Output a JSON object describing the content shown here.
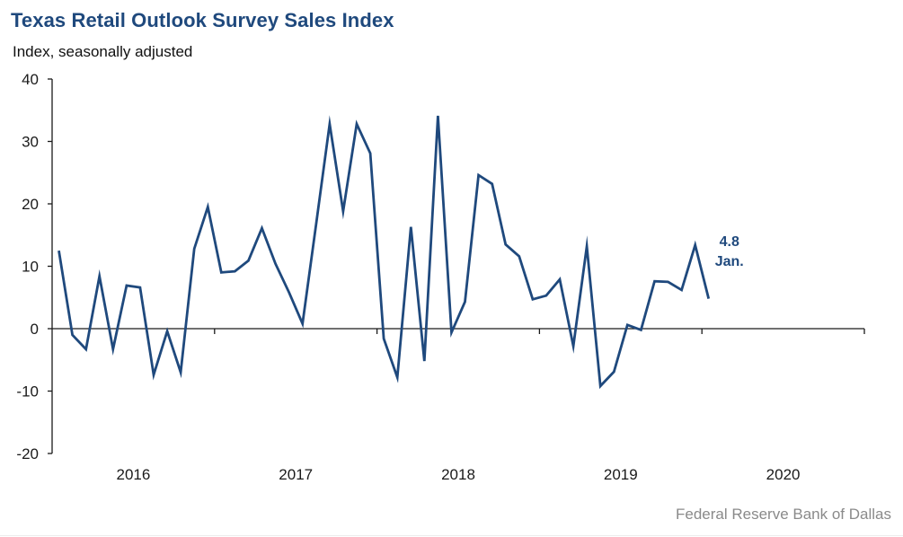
{
  "header": {
    "title": "Texas Retail Outlook Survey Sales Index",
    "subtitle": "Index, seasonally adjusted"
  },
  "footer": {
    "source": "Federal Reserve Bank of Dallas"
  },
  "colors": {
    "series": "#1f497d",
    "title": "#1f497d",
    "axis": "#1a1a1a",
    "source": "#8a8a8a"
  },
  "chart_data": {
    "type": "line",
    "title": "Texas Retail Outlook Survey Sales Index",
    "subtitle": "Index, seasonally adjusted",
    "xlabel": "",
    "ylabel": "Index, seasonally adjusted",
    "ylim": [
      -20,
      40
    ],
    "yticks": [
      40,
      30,
      20,
      10,
      0,
      -10,
      -20
    ],
    "ytick_labels": [
      "40",
      "30",
      "20",
      "10",
      "0",
      "-10",
      "-20"
    ],
    "xlim_months": [
      "2016-01",
      "2020-12"
    ],
    "xtick_labels": [
      "2016",
      "2017",
      "2018",
      "2019",
      "2020"
    ],
    "grid": false,
    "legend": "none",
    "series": [
      {
        "name": "Sales Index",
        "start": "2016-01",
        "frequency": "monthly",
        "values": [
          12.5,
          -1.0,
          -3.3,
          8.4,
          -3.3,
          6.9,
          6.6,
          -7.4,
          -0.4,
          -7.0,
          12.8,
          19.5,
          9.0,
          9.2,
          10.9,
          16.1,
          10.4,
          5.8,
          0.8,
          16.7,
          32.8,
          18.8,
          32.8,
          28.1,
          -1.6,
          -7.8,
          16.3,
          -5.2,
          34.1,
          -0.6,
          4.3,
          24.6,
          23.2,
          13.5,
          11.6,
          4.7,
          5.3,
          7.9,
          -2.8,
          13.2,
          -9.2,
          -6.9,
          0.6,
          -0.2,
          7.6,
          7.5,
          6.2,
          13.4,
          4.8
        ]
      }
    ],
    "annotations": [
      {
        "value_text": "4.8",
        "month_text": "Jan.",
        "points_to": "last"
      }
    ]
  }
}
